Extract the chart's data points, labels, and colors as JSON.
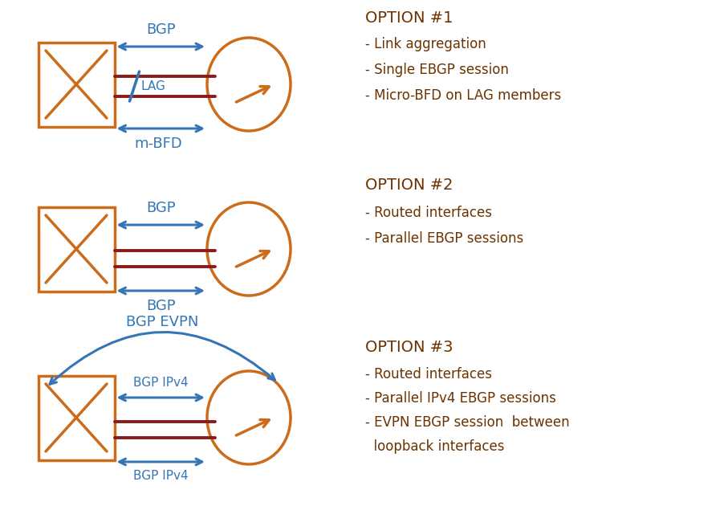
{
  "bg_color": "#ffffff",
  "orange": "#CC6B1A",
  "blue": "#3575B5",
  "dark_red": "#8B1A1A",
  "text_color": "#6B3300",
  "option1": {
    "title": "OPTION #1",
    "bullets": [
      "- Link aggregation",
      "- Single EBGP session",
      "- Micro-BFD on LAG members"
    ],
    "bgp_label": "BGP",
    "lag_label": "LAG",
    "mbfd_label": "m-BFD"
  },
  "option2": {
    "title": "OPTION #2",
    "bullets": [
      "- Routed interfaces",
      "- Parallel EBGP sessions"
    ],
    "bgp_top_label": "BGP",
    "bgp_bot_label": "BGP"
  },
  "option3": {
    "title": "OPTION #3",
    "bullets": [
      "- Routed interfaces",
      "- Parallel IPv4 EBGP sessions",
      "- EVPN EBGP session  between",
      "  loopback interfaces"
    ],
    "bgp_evpn_label": "BGP EVPN",
    "bgp_ipv4_top": "BGP IPv4",
    "bgp_ipv4_bot": "BGP IPv4"
  },
  "layout": {
    "fig_w": 9.07,
    "fig_h": 6.3,
    "dpi": 100
  }
}
